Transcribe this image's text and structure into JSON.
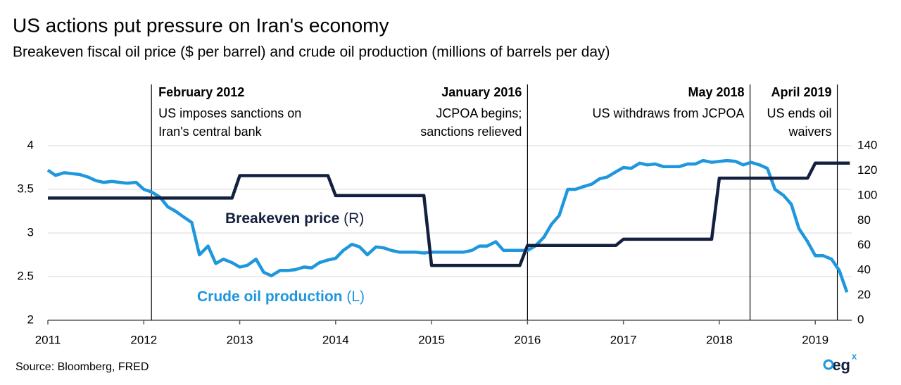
{
  "chart_data": {
    "type": "line",
    "title": "US actions put pressure on Iran's economy",
    "subtitle": "Breakeven fiscal oil price ($ per barrel) and crude oil production (millions of barrels per day)",
    "source": "Source: Bloomberg,  FRED",
    "logo": "eg",
    "logo_sup": "x",
    "xlim": [
      2011,
      2019.38
    ],
    "xticks": [
      2011,
      2012,
      2013,
      2014,
      2015,
      2016,
      2017,
      2018,
      2019
    ],
    "ylim": [
      2,
      4
    ],
    "yticks": [
      2,
      2.5,
      3,
      3.5,
      4
    ],
    "y2lim": [
      0,
      140
    ],
    "y2ticks": [
      0,
      20,
      40,
      60,
      80,
      100,
      120,
      140
    ],
    "grid": true,
    "series": [
      {
        "name": "Crude oil production",
        "axis_tag": "(L)",
        "color": "#1f97dd",
        "x": [
          2011.0,
          2011.08,
          2011.17,
          2011.25,
          2011.33,
          2011.42,
          2011.5,
          2011.58,
          2011.67,
          2011.75,
          2011.83,
          2011.92,
          2012.0,
          2012.08,
          2012.17,
          2012.25,
          2012.33,
          2012.42,
          2012.5,
          2012.58,
          2012.67,
          2012.75,
          2012.83,
          2012.92,
          2013.0,
          2013.08,
          2013.17,
          2013.25,
          2013.33,
          2013.42,
          2013.5,
          2013.58,
          2013.67,
          2013.75,
          2013.83,
          2013.92,
          2014.0,
          2014.08,
          2014.17,
          2014.25,
          2014.33,
          2014.42,
          2014.5,
          2014.58,
          2014.67,
          2014.75,
          2014.83,
          2014.92,
          2015.0,
          2015.08,
          2015.17,
          2015.25,
          2015.33,
          2015.42,
          2015.5,
          2015.58,
          2015.67,
          2015.75,
          2015.83,
          2015.92,
          2016.0,
          2016.08,
          2016.17,
          2016.25,
          2016.33,
          2016.42,
          2016.5,
          2016.58,
          2016.67,
          2016.75,
          2016.83,
          2016.92,
          2017.0,
          2017.08,
          2017.17,
          2017.25,
          2017.33,
          2017.42,
          2017.5,
          2017.58,
          2017.67,
          2017.75,
          2017.83,
          2017.92,
          2018.0,
          2018.08,
          2018.17,
          2018.25,
          2018.33,
          2018.42,
          2018.5,
          2018.58,
          2018.67,
          2018.75,
          2018.83,
          2018.92,
          2019.0,
          2019.08,
          2019.17,
          2019.25,
          2019.33
        ],
        "values": [
          3.72,
          3.66,
          3.69,
          3.68,
          3.67,
          3.64,
          3.6,
          3.58,
          3.59,
          3.58,
          3.57,
          3.58,
          3.5,
          3.47,
          3.41,
          3.3,
          3.25,
          3.18,
          3.12,
          2.75,
          2.85,
          2.65,
          2.7,
          2.66,
          2.61,
          2.63,
          2.7,
          2.55,
          2.51,
          2.57,
          2.57,
          2.58,
          2.61,
          2.6,
          2.66,
          2.69,
          2.71,
          2.8,
          2.87,
          2.84,
          2.75,
          2.84,
          2.83,
          2.8,
          2.78,
          2.78,
          2.78,
          2.77,
          2.78,
          2.78,
          2.78,
          2.78,
          2.78,
          2.8,
          2.85,
          2.85,
          2.9,
          2.8,
          2.8,
          2.8,
          2.8,
          2.85,
          2.95,
          3.1,
          3.2,
          3.5,
          3.5,
          3.53,
          3.56,
          3.62,
          3.64,
          3.7,
          3.75,
          3.74,
          3.8,
          3.78,
          3.79,
          3.76,
          3.76,
          3.76,
          3.79,
          3.79,
          3.83,
          3.81,
          3.82,
          3.83,
          3.82,
          3.78,
          3.81,
          3.78,
          3.74,
          3.5,
          3.43,
          3.33,
          3.05,
          2.9,
          2.74,
          2.74,
          2.7,
          2.57,
          2.32
        ]
      },
      {
        "name": "Breakeven price",
        "axis_tag": "(R)",
        "color": "#14203f",
        "axis": "y2",
        "x": [
          2011,
          2012.92,
          2013.0,
          2013.92,
          2014.0,
          2014.92,
          2015.0,
          2015.92,
          2016.0,
          2016.92,
          2017.0,
          2017.92,
          2018.0,
          2018.92,
          2019.0,
          2019.36
        ],
        "values": [
          98,
          98,
          116,
          116,
          100,
          100,
          44,
          44,
          60,
          60,
          65,
          65,
          114,
          114,
          126,
          126
        ]
      }
    ],
    "annotations": [
      {
        "x": 2012.08,
        "title": "February 2012",
        "lines": [
          "US imposes sanctions on",
          "Iran's central bank"
        ]
      },
      {
        "x": 2016.0,
        "title": "January 2016",
        "lines": [
          "JCPOA begins;",
          "sanctions relieved"
        ]
      },
      {
        "x": 2018.32,
        "title": "May 2018",
        "lines": [
          "US withdraws from JCPOA"
        ]
      },
      {
        "x": 2019.23,
        "title": "April 2019",
        "lines": [
          "US ends oil",
          "waivers"
        ]
      }
    ]
  }
}
